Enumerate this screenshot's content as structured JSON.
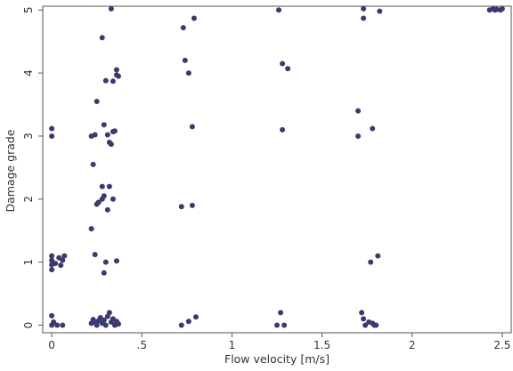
{
  "chart_data": {
    "type": "scatter",
    "title": "",
    "xlabel": "Flow velocity [m/s]",
    "ylabel": "Damage grade",
    "xlim": [
      -0.05,
      2.55
    ],
    "ylim": [
      -0.12,
      5.06
    ],
    "x_ticks": [
      0,
      0.5,
      1,
      1.5,
      2,
      2.5
    ],
    "x_tick_labels": [
      "0",
      ".5",
      "1",
      "1.5",
      "2",
      "2.5"
    ],
    "y_ticks": [
      0,
      1,
      2,
      3,
      4,
      5
    ],
    "y_tick_labels": [
      "0",
      "1",
      "2",
      "3",
      "4",
      "5"
    ],
    "grid": false,
    "marker_color": "#3a3a6e",
    "frame_color": "#555555",
    "series": [
      {
        "points": [
          [
            0.0,
            3.12
          ],
          [
            0.0,
            3.0
          ],
          [
            0.0,
            1.1
          ],
          [
            0.0,
            1.03
          ],
          [
            0.0,
            0.96
          ],
          [
            0.0,
            0.88
          ],
          [
            0.02,
            0.98
          ],
          [
            0.04,
            1.07
          ],
          [
            0.05,
            0.95
          ],
          [
            0.06,
            1.03
          ],
          [
            0.07,
            1.1
          ],
          [
            0.0,
            0.15
          ],
          [
            0.01,
            0.05
          ],
          [
            0.03,
            0.0
          ],
          [
            0.06,
            0.0
          ],
          [
            0.0,
            0.0
          ],
          [
            0.22,
            3.0
          ],
          [
            0.24,
            3.02
          ],
          [
            0.23,
            2.55
          ],
          [
            0.25,
            3.55
          ],
          [
            0.22,
            1.53
          ],
          [
            0.25,
            1.92
          ],
          [
            0.26,
            1.95
          ],
          [
            0.28,
            2.2
          ],
          [
            0.29,
            2.05
          ],
          [
            0.28,
            2.0
          ],
          [
            0.31,
            1.83
          ],
          [
            0.32,
            2.2
          ],
          [
            0.34,
            2.0
          ],
          [
            0.28,
            4.56
          ],
          [
            0.3,
            3.88
          ],
          [
            0.29,
            3.18
          ],
          [
            0.31,
            3.02
          ],
          [
            0.32,
            2.9
          ],
          [
            0.33,
            2.87
          ],
          [
            0.34,
            3.07
          ],
          [
            0.35,
            3.08
          ],
          [
            0.33,
            5.02
          ],
          [
            0.36,
            4.05
          ],
          [
            0.34,
            3.87
          ],
          [
            0.36,
            3.97
          ],
          [
            0.37,
            3.95
          ],
          [
            0.24,
            1.12
          ],
          [
            0.29,
            0.83
          ],
          [
            0.3,
            1.0
          ],
          [
            0.36,
            1.02
          ],
          [
            0.22,
            0.03
          ],
          [
            0.23,
            0.09
          ],
          [
            0.24,
            0.05
          ],
          [
            0.25,
            0.0
          ],
          [
            0.26,
            0.07
          ],
          [
            0.27,
            0.12
          ],
          [
            0.28,
            0.03
          ],
          [
            0.29,
            0.08
          ],
          [
            0.3,
            0.0
          ],
          [
            0.31,
            0.14
          ],
          [
            0.32,
            0.2
          ],
          [
            0.33,
            0.05
          ],
          [
            0.34,
            0.1
          ],
          [
            0.35,
            0.0
          ],
          [
            0.36,
            0.06
          ],
          [
            0.37,
            0.02
          ],
          [
            0.72,
            1.88
          ],
          [
            0.73,
            4.72
          ],
          [
            0.74,
            4.2
          ],
          [
            0.76,
            4.0
          ],
          [
            0.78,
            1.9
          ],
          [
            0.78,
            3.15
          ],
          [
            0.79,
            4.87
          ],
          [
            0.72,
            0.0
          ],
          [
            0.76,
            0.06
          ],
          [
            0.8,
            0.13
          ],
          [
            1.26,
            5.0
          ],
          [
            1.28,
            4.15
          ],
          [
            1.28,
            3.1
          ],
          [
            1.31,
            4.07
          ],
          [
            1.27,
            0.2
          ],
          [
            1.25,
            0.0
          ],
          [
            1.29,
            0.0
          ],
          [
            1.7,
            3.4
          ],
          [
            1.7,
            3.0
          ],
          [
            1.73,
            5.02
          ],
          [
            1.73,
            4.87
          ],
          [
            1.78,
            3.12
          ],
          [
            1.77,
            1.0
          ],
          [
            1.81,
            1.1
          ],
          [
            1.82,
            4.98
          ],
          [
            1.72,
            0.2
          ],
          [
            1.73,
            0.1
          ],
          [
            1.74,
            0.0
          ],
          [
            1.76,
            0.05
          ],
          [
            1.78,
            0.03
          ],
          [
            1.79,
            0.0
          ],
          [
            1.8,
            0.0
          ],
          [
            2.43,
            5.0
          ],
          [
            2.45,
            5.02
          ],
          [
            2.46,
            5.0
          ],
          [
            2.47,
            5.01
          ],
          [
            2.49,
            5.0
          ],
          [
            2.5,
            5.02
          ]
        ]
      }
    ]
  }
}
